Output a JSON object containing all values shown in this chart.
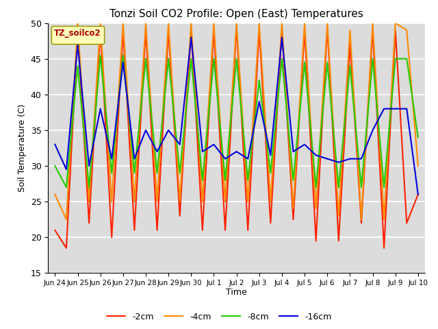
{
  "title": "Tonzi Soil CO2 Profile: Open (East) Temperatures",
  "ylabel": "Soil Temperature (C)",
  "xlabel": "Time",
  "legend_label": "TZ_soilco2",
  "ylim": [
    15,
    50
  ],
  "yticks": [
    15,
    20,
    25,
    30,
    35,
    40,
    45,
    50
  ],
  "series_labels": [
    "-2cm",
    "-4cm",
    "-8cm",
    "-16cm"
  ],
  "series_colors": [
    "#ff2200",
    "#ff8800",
    "#22cc00",
    "#0000dd"
  ],
  "background_color": "#dcdcdc",
  "x_tick_positions": [
    0,
    1,
    2,
    3,
    4,
    5,
    6,
    7,
    8,
    9,
    10,
    11,
    12,
    13,
    14,
    15,
    16
  ],
  "x_tick_labels": [
    "Jun 24",
    "Jun 25",
    "Jun 26",
    "Jun 27",
    "Jun 28",
    "Jun 29",
    "Jun 30",
    "Jul 1",
    "Jul 2",
    "Jul 3",
    "Jul 4",
    "Jul 5",
    "Jul 6",
    "Jul 7",
    "Jul 8",
    "Jul 9",
    "Jul 10"
  ],
  "x": [
    0,
    0.5,
    1,
    1.5,
    2,
    2.5,
    3,
    3.5,
    4,
    4.5,
    5,
    5.5,
    6,
    6.5,
    7,
    7.5,
    8,
    8.5,
    9,
    9.5,
    10,
    10.5,
    11,
    11.5,
    12,
    12.5,
    13,
    13.5,
    14,
    14.5,
    15,
    15.5,
    16
  ],
  "y_2cm": [
    21,
    18.5,
    49,
    22,
    49,
    20,
    49,
    21,
    49,
    21,
    49,
    23,
    49,
    21,
    49,
    21,
    49.5,
    21,
    49,
    22,
    49,
    22.5,
    49,
    19.5,
    49.5,
    19.5,
    47,
    22,
    49,
    18.5,
    49,
    22,
    26
  ],
  "y_4cm": [
    26,
    22.5,
    50,
    25,
    50,
    25,
    50,
    25,
    50,
    25,
    50,
    25,
    50,
    25,
    50,
    25,
    50,
    25,
    50,
    25,
    50,
    24,
    50,
    24,
    50,
    23,
    49,
    22.5,
    50,
    22.5,
    50,
    49,
    30
  ],
  "y_8cm": [
    30,
    27,
    44,
    27,
    45.5,
    29,
    45.5,
    29,
    45,
    29,
    45,
    29,
    45,
    28,
    45,
    28,
    45,
    28,
    42,
    29,
    45,
    28,
    44.5,
    27,
    44.5,
    27,
    44,
    27,
    45,
    27,
    45,
    45,
    34
  ],
  "y_16cm": [
    33,
    29.5,
    47,
    30,
    38,
    31,
    44.5,
    31,
    35,
    32,
    35,
    33,
    48,
    32,
    33,
    31,
    32,
    31,
    39,
    31.5,
    48,
    32,
    33,
    31.5,
    31,
    30.5,
    31,
    31,
    35,
    38,
    38,
    38,
    26
  ]
}
